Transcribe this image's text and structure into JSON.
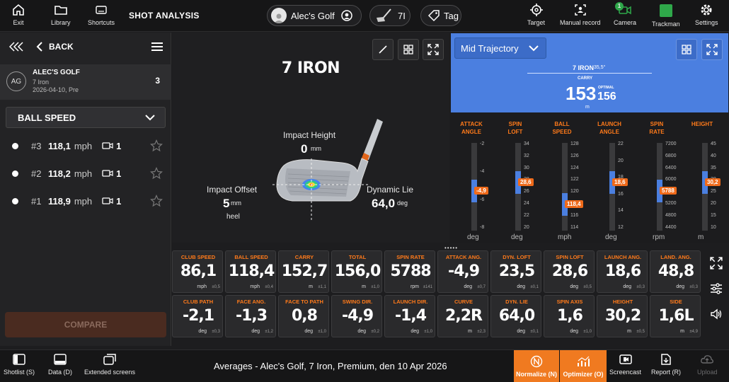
{
  "topbar": {
    "exit": "Exit",
    "library": "Library",
    "shortcuts": "Shortcuts",
    "title": "SHOT ANALYSIS",
    "player": "Alec's Golf",
    "club_num": "7I",
    "tag": "Tag",
    "target": "Target",
    "manual": "Manual record",
    "camera": "Camera",
    "camera_badge": "1",
    "trackman": "Trackman",
    "settings": "Settings"
  },
  "left": {
    "back": "BACK",
    "player_initials": "AG",
    "player_name": "ALEC'S GOLF",
    "player_club": "7 Iron",
    "player_date": "2026-04-10, Pre",
    "player_count": "3",
    "metric": "BALL SPEED",
    "compare": "COMPARE",
    "shots": [
      {
        "num": "#3",
        "value": "118,1",
        "unit": "mph",
        "count": "1"
      },
      {
        "num": "#2",
        "value": "118,2",
        "unit": "mph",
        "count": "1"
      },
      {
        "num": "#1",
        "value": "118,9",
        "unit": "mph",
        "count": "1"
      }
    ]
  },
  "center": {
    "club": "7 IRON",
    "impact_height_label": "Impact Height",
    "impact_height_value": "0",
    "impact_height_unit": "mm",
    "impact_offset_label": "Impact Offset",
    "impact_offset_value": "5",
    "impact_offset_unit": "mm",
    "impact_offset_side": "heel",
    "dynamic_lie_label": "Dynamic Lie",
    "dynamic_lie_value": "64,0",
    "dynamic_lie_unit": "deg"
  },
  "trajectory": {
    "dropdown": "Mid Trajectory",
    "club": "7 IRON",
    "loft": "35,5°",
    "carry_label": "CARRY",
    "carry": "153",
    "optimal_label": "OPTIMAL",
    "optimal": "156",
    "unit": "m"
  },
  "scales": [
    {
      "title": "ATTACK\nANGLE",
      "unit": "deg",
      "ticks": [
        "-2",
        "-4",
        "-6",
        "-8"
      ],
      "badge": "-4,9",
      "level": 0.45
    },
    {
      "title": "SPIN\nLOFT",
      "unit": "deg",
      "ticks": [
        "34",
        "32",
        "30",
        "28",
        "26",
        "24",
        "22",
        "20"
      ],
      "badge": "28,6",
      "level": 0.55
    },
    {
      "title": "BALL\nSPEED",
      "unit": "mph",
      "ticks": [
        "128",
        "126",
        "124",
        "122",
        "120",
        "118",
        "116",
        "114"
      ],
      "badge": "118,4",
      "level": 0.3
    },
    {
      "title": "LAUNCH\nANGLE",
      "unit": "deg",
      "ticks": [
        "22",
        "20",
        "18",
        "16",
        "14",
        "12"
      ],
      "badge": "18,6",
      "level": 0.55
    },
    {
      "title": "SPIN\nRATE",
      "unit": "rpm",
      "ticks": [
        "7200",
        "6800",
        "6400",
        "6000",
        "5600",
        "5200",
        "4800",
        "4400"
      ],
      "badge": "5788",
      "level": 0.45
    },
    {
      "title": "HEIGHT",
      "unit": "m",
      "ticks": [
        "45",
        "40",
        "35",
        "30",
        "25",
        "20",
        "15",
        "10"
      ],
      "badge": "30,2",
      "level": 0.55
    }
  ],
  "stats": [
    {
      "label": "CLUB SPEED",
      "value": "86,1",
      "unit": "mph",
      "dev": "±0,5"
    },
    {
      "label": "BALL SPEED",
      "value": "118,4",
      "unit": "mph",
      "dev": "±0,4"
    },
    {
      "label": "CARRY",
      "value": "152,7",
      "unit": "m",
      "dev": "±1,1"
    },
    {
      "label": "TOTAL",
      "value": "156,0",
      "unit": "m",
      "dev": "±1,0"
    },
    {
      "label": "SPIN RATE",
      "value": "5788",
      "unit": "rpm",
      "dev": "±141"
    },
    {
      "label": "ATTACK ANG.",
      "value": "-4,9",
      "unit": "deg",
      "dev": "±0,7"
    },
    {
      "label": "DYN. LOFT",
      "value": "23,5",
      "unit": "deg",
      "dev": "±0,1"
    },
    {
      "label": "SPIN LOFT",
      "value": "28,6",
      "unit": "deg",
      "dev": "±0,5"
    },
    {
      "label": "LAUNCH ANG.",
      "value": "18,6",
      "unit": "deg",
      "dev": "±0,3"
    },
    {
      "label": "LAND. ANG.",
      "value": "48,8",
      "unit": "deg",
      "dev": "±0,3"
    },
    {
      "label": "CLUB PATH",
      "value": "-2,1",
      "unit": "deg",
      "dev": "±0,3"
    },
    {
      "label": "FACE ANG.",
      "value": "-1,3",
      "unit": "deg",
      "dev": "±1,2"
    },
    {
      "label": "FACE TO PATH",
      "value": "0,8",
      "unit": "deg",
      "dev": "±1,0"
    },
    {
      "label": "SWING DIR.",
      "value": "-4,9",
      "unit": "deg",
      "dev": "±0,2"
    },
    {
      "label": "LAUNCH DIR.",
      "value": "-1,4",
      "unit": "deg",
      "dev": "±1,0"
    },
    {
      "label": "CURVE",
      "value": "2,2R",
      "unit": "m",
      "dev": "±2,3"
    },
    {
      "label": "DYN. LIE",
      "value": "64,0",
      "unit": "deg",
      "dev": "±0,1"
    },
    {
      "label": "SPIN AXIS",
      "value": "1,6",
      "unit": "deg",
      "dev": "±1,0"
    },
    {
      "label": "HEIGHT",
      "value": "30,2",
      "unit": "m",
      "dev": "±0,5"
    },
    {
      "label": "SIDE",
      "value": "1,6L",
      "unit": "m",
      "dev": "±4,9"
    }
  ],
  "bottom": {
    "shotlist": "Shotlist (S)",
    "data": "Data (D)",
    "extended": "Extended screens",
    "summary": "Averages - Alec's Golf, 7 Iron, Premium, den 10 Apr 2026",
    "normalize": "Normalize (N)",
    "optimizer": "Optimizer (O)",
    "screencast": "Screencast",
    "report": "Report (R)",
    "upload": "Upload"
  },
  "colors": {
    "accent": "#f07a20",
    "blue": "#4b7fe0",
    "green": "#2fa84a"
  }
}
